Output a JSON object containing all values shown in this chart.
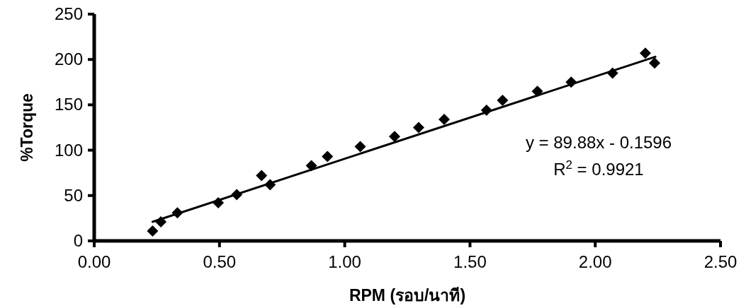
{
  "chart_data": {
    "type": "scatter",
    "xlabel": "RPM (รอบ/นาที)",
    "ylabel": "%Torque",
    "xlim": [
      0,
      2.5
    ],
    "xticks": [
      {
        "value": 0,
        "label": "0.00"
      },
      {
        "value": 0.5,
        "label": "0.50"
      },
      {
        "value": 1,
        "label": "1.00"
      },
      {
        "value": 1.5,
        "label": "1.50"
      },
      {
        "value": 2,
        "label": "2.00"
      },
      {
        "value": 2.5,
        "label": "2.50"
      }
    ],
    "ylim": [
      0,
      250
    ],
    "yticks": [
      0,
      50,
      100,
      150,
      200,
      250
    ],
    "grid": false,
    "series": [
      {
        "marker": "diamond",
        "color": "#000000",
        "x": [
          0.233,
          0.266,
          0.332,
          0.495,
          0.569,
          0.668,
          0.702,
          0.867,
          0.931,
          1.062,
          1.199,
          1.295,
          1.397,
          1.566,
          1.63,
          1.769,
          1.904,
          2.069,
          2.2,
          2.237
        ],
        "values": [
          11,
          21,
          31,
          42,
          51,
          72,
          62,
          83,
          93,
          104,
          115,
          125,
          134,
          144,
          155,
          165,
          175,
          185,
          207,
          196
        ]
      },
      {
        "type": "line",
        "color": "#000000",
        "x": [
          0.233,
          2.24
        ],
        "values": [
          21,
          203
        ]
      }
    ],
    "annotations": [
      "y = 89.88x - 0.1596",
      "R$^{2}$ = 0.9921"
    ]
  }
}
